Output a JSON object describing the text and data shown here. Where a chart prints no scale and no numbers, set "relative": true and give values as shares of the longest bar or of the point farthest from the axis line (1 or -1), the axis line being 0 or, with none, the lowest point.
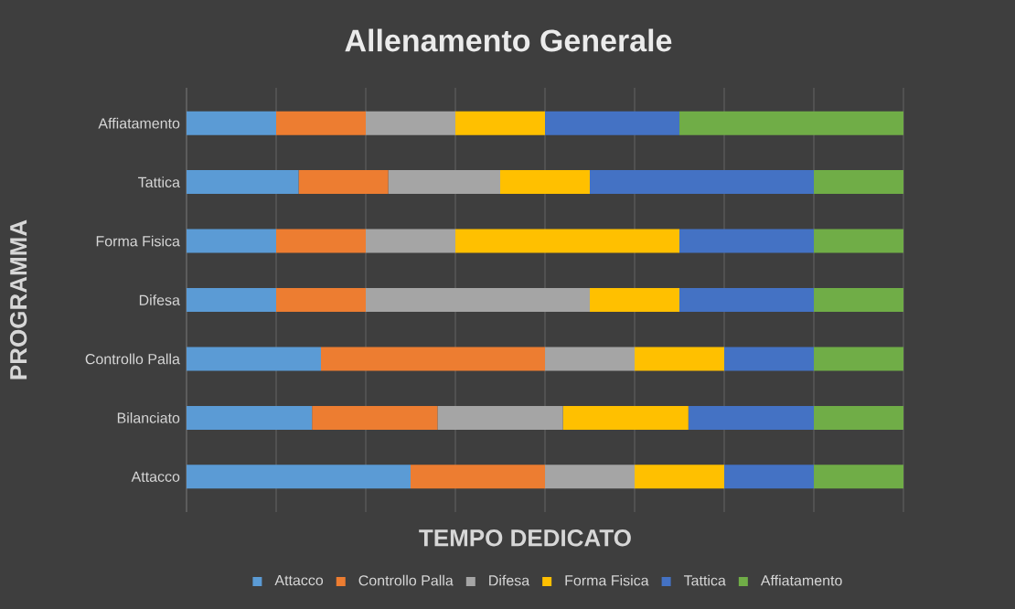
{
  "chart_data": {
    "type": "bar",
    "orientation": "horizontal",
    "stacked": true,
    "relative": true,
    "title": "Allenamento Generale",
    "xlabel": "TEMPO DEDICATO",
    "ylabel": "PROGRAMMA",
    "categories": [
      "Affiatamento",
      "Tattica",
      "Forma Fisica",
      "Difesa",
      "Controllo Palla",
      "Bilanciato",
      "Attacco"
    ],
    "series": [
      {
        "name": "Attacco",
        "color": "#5b9bd5",
        "values": [
          0.125,
          0.15625,
          0.125,
          0.125,
          0.1875,
          0.175,
          0.3125
        ]
      },
      {
        "name": "Controllo Palla",
        "color": "#ed7d31",
        "values": [
          0.125,
          0.125,
          0.125,
          0.125,
          0.3125,
          0.175,
          0.1875
        ]
      },
      {
        "name": "Difesa",
        "color": "#a5a5a5",
        "values": [
          0.125,
          0.15625,
          0.125,
          0.3125,
          0.125,
          0.175,
          0.125
        ]
      },
      {
        "name": "Forma Fisica",
        "color": "#ffc000",
        "values": [
          0.125,
          0.125,
          0.3125,
          0.125,
          0.125,
          0.175,
          0.125
        ]
      },
      {
        "name": "Tattica",
        "color": "#4472c4",
        "values": [
          0.1875,
          0.3125,
          0.1875,
          0.1875,
          0.125,
          0.175,
          0.125
        ]
      },
      {
        "name": "Affiatamento",
        "color": "#70ad47",
        "values": [
          0.3125,
          0.125,
          0.125,
          0.125,
          0.125,
          0.125,
          0.125
        ]
      }
    ],
    "grid": "x",
    "legend": "bottom"
  }
}
